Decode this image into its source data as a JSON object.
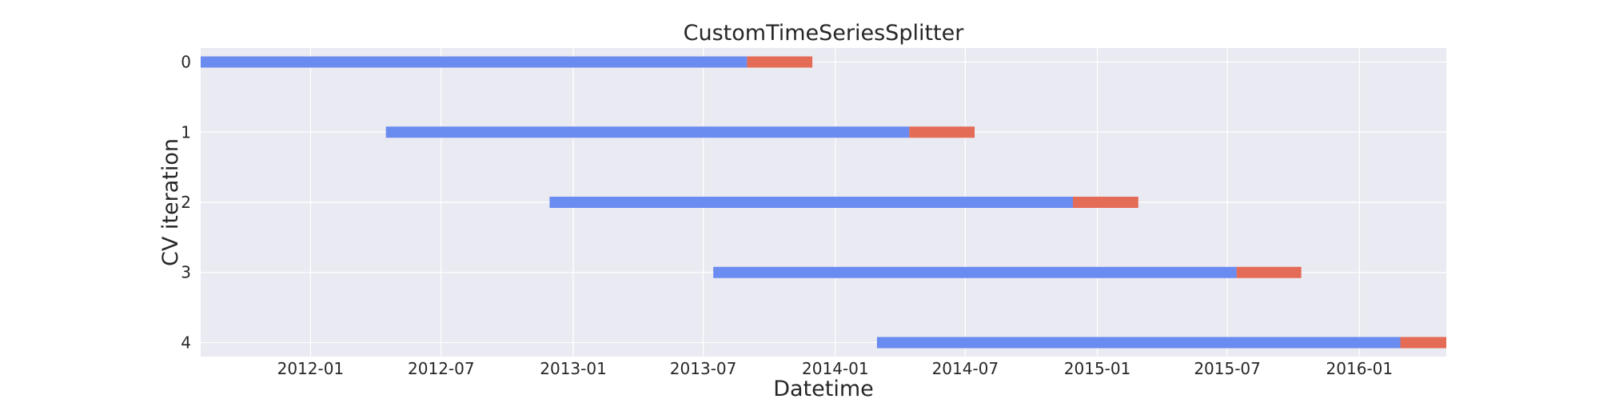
{
  "chart_data": {
    "type": "gantt",
    "title": "CustomTimeSeriesSplitter",
    "xlabel": "Datetime",
    "ylabel": "CV iteration",
    "x_type": "date",
    "xlim": [
      "2011-08-01",
      "2016-05-01"
    ],
    "ylim": [
      -0.2,
      4.2
    ],
    "y_inverted": true,
    "x_ticks": [
      "2012-01-01",
      "2012-07-01",
      "2013-01-01",
      "2013-07-01",
      "2014-01-01",
      "2014-07-01",
      "2015-01-01",
      "2015-07-01",
      "2016-01-01"
    ],
    "x_tick_labels": [
      "2012-01",
      "2012-07",
      "2013-01",
      "2013-07",
      "2014-01",
      "2014-07",
      "2015-01",
      "2015-07",
      "2016-01"
    ],
    "y_ticks": [
      0,
      1,
      2,
      3,
      4
    ],
    "y_tick_labels": [
      "0",
      "1",
      "2",
      "3",
      "4"
    ],
    "grid": true,
    "colors": {
      "train": "#6a8bef",
      "test": "#e46b55",
      "plot_bg": "#eaeaf2",
      "grid": "#ffffff"
    },
    "iterations": [
      {
        "iteration": 0,
        "train": [
          "2011-08-01",
          "2013-08-31"
        ],
        "test": [
          "2013-08-31",
          "2013-11-30"
        ]
      },
      {
        "iteration": 1,
        "train": [
          "2012-04-15",
          "2014-04-14"
        ],
        "test": [
          "2014-04-14",
          "2014-07-14"
        ]
      },
      {
        "iteration": 2,
        "train": [
          "2012-11-29",
          "2014-11-28"
        ],
        "test": [
          "2014-11-28",
          "2015-02-27"
        ]
      },
      {
        "iteration": 3,
        "train": [
          "2013-07-15",
          "2015-07-14"
        ],
        "test": [
          "2015-07-14",
          "2015-10-12"
        ]
      },
      {
        "iteration": 4,
        "train": [
          "2014-02-28",
          "2016-02-27"
        ],
        "test": [
          "2016-02-27",
          "2016-05-01"
        ]
      }
    ]
  }
}
